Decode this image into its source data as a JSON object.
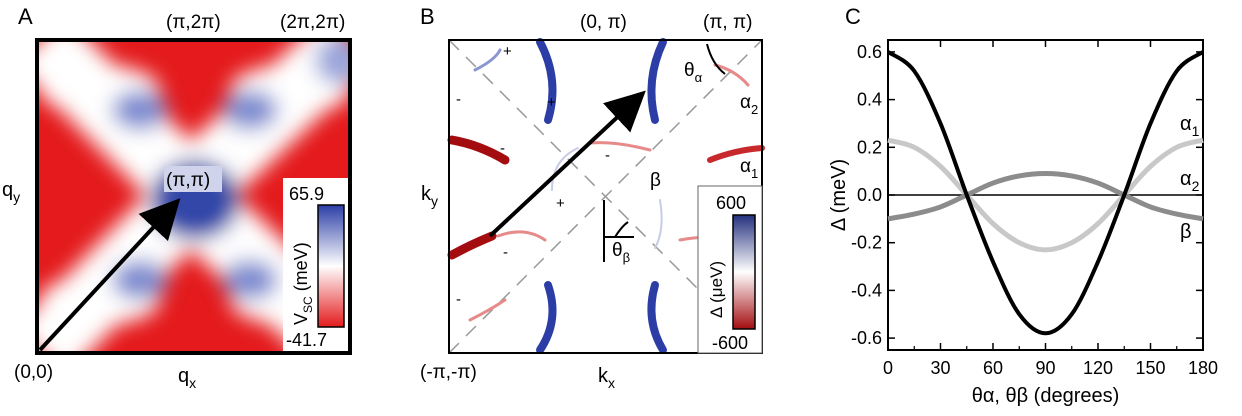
{
  "panelA": {
    "letter": "A",
    "corner_top": "(π,2π)",
    "corner_topright": "(2π,2π)",
    "corner_origin": "(0,0)",
    "center_label": "(π,π)",
    "xlabel": "q",
    "xlabel_sub": "x",
    "ylabel": "q",
    "ylabel_sub": "y",
    "colorbar": {
      "max": "65.9",
      "min": "-41.7",
      "label": "V",
      "label_sub": "SC",
      "label_unit": " (meV)"
    },
    "colors": {
      "red": "#e41a1c",
      "blue": "#2c3ea6",
      "white": "#ffffff"
    }
  },
  "panelB": {
    "letter": "B",
    "corner_top": "(0, π)",
    "corner_topright": "(π, π)",
    "corner_origin": "(-π,-π)",
    "xlabel": "k",
    "xlabel_sub": "x",
    "ylabel": "k",
    "ylabel_sub": "y",
    "theta_alpha": "θ",
    "theta_alpha_sub": "α",
    "theta_beta": "θ",
    "theta_beta_sub": "β",
    "alpha2": "α",
    "alpha2_sub": "2",
    "alpha1": "α",
    "alpha1_sub": "1",
    "beta": "β",
    "signs": [
      "+",
      "-",
      "+",
      "-",
      "-",
      "+",
      "-",
      "-"
    ],
    "colorbar": {
      "max": "600",
      "min": "-600",
      "label": "Δ (μeV)"
    }
  },
  "panelC": {
    "letter": "C",
    "chart_data": {
      "type": "line",
      "xlabel": "θα, θβ (degrees)",
      "ylabel": "Δ (meV)",
      "xlim": [
        0,
        180
      ],
      "ylim": [
        -0.65,
        0.65
      ],
      "xticks": [
        "0",
        "30",
        "60",
        "90",
        "120",
        "150",
        "180"
      ],
      "yticks": [
        "0.6",
        "0.4",
        "0.2",
        "0.0",
        "-0.2",
        "-0.4",
        "-0.6"
      ],
      "x": [
        0,
        15,
        30,
        45,
        60,
        75,
        90,
        105,
        120,
        135,
        150,
        165,
        180
      ],
      "series": [
        {
          "name": "α1",
          "color": "#000000",
          "values": [
            0.6,
            0.52,
            0.3,
            0.0,
            -0.28,
            -0.5,
            -0.58,
            -0.5,
            -0.28,
            0.0,
            0.3,
            0.52,
            0.6
          ]
        },
        {
          "name": "α2",
          "color": "#c8c8c8",
          "values": [
            0.23,
            0.2,
            0.12,
            0.0,
            -0.12,
            -0.2,
            -0.23,
            -0.2,
            -0.12,
            0.0,
            0.12,
            0.2,
            0.23
          ]
        },
        {
          "name": "β",
          "color": "#8c8c8c",
          "values": [
            -0.1,
            -0.08,
            -0.05,
            0.0,
            0.05,
            0.08,
            0.09,
            0.08,
            0.05,
            0.0,
            -0.05,
            -0.08,
            -0.1
          ]
        }
      ],
      "legend_labels": [
        {
          "text": "α",
          "sub": "1"
        },
        {
          "text": "α",
          "sub": "2"
        },
        {
          "text": "β",
          "sub": ""
        }
      ]
    }
  }
}
